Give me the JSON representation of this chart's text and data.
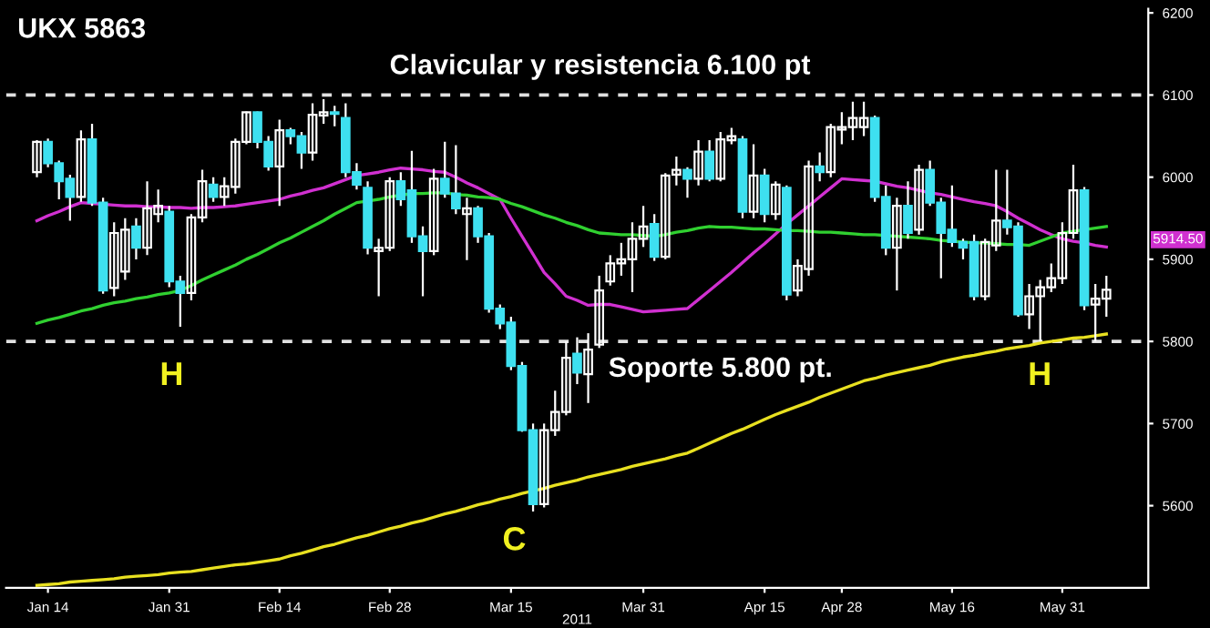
{
  "chart_data": {
    "type": "candlestick",
    "title": "UKX 5863",
    "xlabel": "2011",
    "categories": [
      null,
      "Jan 14",
      null,
      null,
      null,
      null,
      null,
      null,
      null,
      null,
      null,
      null,
      "Jan 31",
      null,
      null,
      null,
      null,
      null,
      null,
      null,
      null,
      null,
      "Feb 14",
      null,
      null,
      null,
      null,
      null,
      null,
      null,
      null,
      null,
      "Feb 28",
      null,
      null,
      null,
      null,
      null,
      null,
      null,
      null,
      null,
      null,
      "Mar 15",
      null,
      null,
      null,
      null,
      null,
      null,
      null,
      null,
      null,
      null,
      null,
      "Mar 31",
      null,
      null,
      null,
      null,
      null,
      null,
      null,
      null,
      null,
      null,
      "Apr 15",
      null,
      null,
      null,
      null,
      null,
      null,
      "Apr 28",
      null,
      null,
      null,
      null,
      null,
      null,
      null,
      null,
      null,
      "May 16",
      null,
      null,
      null,
      null,
      null,
      null,
      null,
      null,
      null,
      "May 31",
      null,
      null,
      null,
      null
    ],
    "ohlc": [
      [
        6006,
        6045,
        6000,
        6043
      ],
      [
        6043,
        6047,
        6012,
        6017
      ],
      [
        6017,
        6020,
        5973,
        5995
      ],
      [
        5998,
        6003,
        5947,
        5976
      ],
      [
        5976,
        6057,
        5970,
        6046
      ],
      [
        6046,
        6065,
        5965,
        5969
      ],
      [
        5969,
        5975,
        5858,
        5862
      ],
      [
        5865,
        5945,
        5855,
        5932
      ],
      [
        5885,
        5950,
        5875,
        5936
      ],
      [
        5940,
        5950,
        5900,
        5914
      ],
      [
        5914,
        5995,
        5905,
        5962
      ],
      [
        5955,
        5985,
        5945,
        5965
      ],
      [
        5958,
        5965,
        5866,
        5873
      ],
      [
        5873,
        5880,
        5818,
        5859
      ],
      [
        5859,
        5955,
        5850,
        5951
      ],
      [
        5951,
        6009,
        5945,
        5995
      ],
      [
        5991,
        6000,
        5970,
        5976
      ],
      [
        5976,
        6000,
        5965,
        5989
      ],
      [
        5988,
        6047,
        5980,
        6043
      ],
      [
        6043,
        6080,
        6040,
        6079
      ],
      [
        6079,
        6080,
        6035,
        6043
      ],
      [
        6043,
        6050,
        6008,
        6013
      ],
      [
        6013,
        6070,
        5965,
        6057
      ],
      [
        6057,
        6060,
        6040,
        6050
      ],
      [
        6050,
        6055,
        6010,
        6030
      ],
      [
        6030,
        6090,
        6020,
        6076
      ],
      [
        6075,
        6095,
        6065,
        6079
      ],
      [
        6079,
        6087,
        6062,
        6077
      ],
      [
        6072,
        6090,
        6000,
        6006
      ],
      [
        6006,
        6017,
        5985,
        5991
      ],
      [
        5987,
        5995,
        5906,
        5914
      ],
      [
        5910,
        5925,
        5855,
        5914
      ],
      [
        5914,
        6000,
        5910,
        5995
      ],
      [
        5995,
        6006,
        5965,
        5973
      ],
      [
        5984,
        6032,
        5920,
        5928
      ],
      [
        5928,
        5940,
        5855,
        5910
      ],
      [
        5910,
        6010,
        5905,
        5998
      ],
      [
        5998,
        6043,
        5975,
        5980
      ],
      [
        5980,
        6039,
        5955,
        5962
      ],
      [
        5955,
        5975,
        5899,
        5962
      ],
      [
        5962,
        5965,
        5920,
        5928
      ],
      [
        5928,
        5932,
        5835,
        5840
      ],
      [
        5840,
        5845,
        5815,
        5822
      ],
      [
        5823,
        5830,
        5765,
        5770
      ],
      [
        5770,
        5775,
        5690,
        5692
      ],
      [
        5692,
        5700,
        5593,
        5602
      ],
      [
        5602,
        5700,
        5598,
        5692
      ],
      [
        5692,
        5740,
        5685,
        5714
      ],
      [
        5714,
        5800,
        5710,
        5780
      ],
      [
        5785,
        5805,
        5748,
        5762
      ],
      [
        5760,
        5810,
        5725,
        5790
      ],
      [
        5796,
        5880,
        5792,
        5862
      ],
      [
        5873,
        5905,
        5868,
        5895
      ],
      [
        5895,
        5920,
        5880,
        5900
      ],
      [
        5900,
        5945,
        5860,
        5925
      ],
      [
        5925,
        5965,
        5915,
        5940
      ],
      [
        5943,
        5955,
        5898,
        5903
      ],
      [
        5903,
        6005,
        5900,
        6002
      ],
      [
        6003,
        6025,
        5990,
        6009
      ],
      [
        6009,
        6012,
        5975,
        5998
      ],
      [
        5998,
        6045,
        5990,
        6031
      ],
      [
        6031,
        6045,
        5995,
        5998
      ],
      [
        5998,
        6055,
        5995,
        6046
      ],
      [
        6045,
        6060,
        6040,
        6050
      ],
      [
        6046,
        6050,
        5950,
        5958
      ],
      [
        5958,
        6040,
        5950,
        6002
      ],
      [
        6002,
        6010,
        5945,
        5955
      ],
      [
        5955,
        5995,
        5948,
        5991
      ],
      [
        5987,
        5990,
        5850,
        5857
      ],
      [
        5862,
        5900,
        5855,
        5892
      ],
      [
        5888,
        6020,
        5880,
        6013
      ],
      [
        6013,
        6030,
        5995,
        6006
      ],
      [
        6006,
        6065,
        6000,
        6061
      ],
      [
        6058,
        6079,
        6040,
        6061
      ],
      [
        6061,
        6092,
        6045,
        6072
      ],
      [
        6061,
        6092,
        6050,
        6072
      ],
      [
        6072,
        6075,
        5970,
        5976
      ],
      [
        5976,
        5990,
        5905,
        5914
      ],
      [
        5914,
        5975,
        5862,
        5965
      ],
      [
        5965,
        5995,
        5925,
        5932
      ],
      [
        5936,
        6015,
        5930,
        6009
      ],
      [
        6009,
        6020,
        5965,
        5969
      ],
      [
        5969,
        5975,
        5877,
        5932
      ],
      [
        5936,
        5990,
        5915,
        5921
      ],
      [
        5921,
        5925,
        5900,
        5914
      ],
      [
        5921,
        5930,
        5850,
        5855
      ],
      [
        5855,
        5925,
        5850,
        5921
      ],
      [
        5917,
        6009,
        5910,
        5947
      ],
      [
        5947,
        6009,
        5930,
        5939
      ],
      [
        5940,
        5945,
        5830,
        5833
      ],
      [
        5833,
        5870,
        5815,
        5855
      ],
      [
        5855,
        5875,
        5800,
        5866
      ],
      [
        5866,
        5895,
        5860,
        5877
      ],
      [
        5877,
        5945,
        5870,
        5932
      ],
      [
        5932,
        6015,
        5925,
        5984
      ],
      [
        5984,
        5988,
        5838,
        5844
      ],
      [
        5845,
        5870,
        5800,
        5852
      ],
      [
        5852,
        5880,
        5830,
        5863
      ]
    ],
    "colors": [
      "#ffffff",
      "#3ee0f0",
      "#3ee0f0",
      "#3ee0f0",
      "#ffffff",
      "#3ee0f0",
      "#3ee0f0",
      "#ffffff",
      "#ffffff",
      "#3ee0f0",
      "#ffffff",
      "#ffffff",
      "#3ee0f0",
      "#3ee0f0",
      "#ffffff",
      "#ffffff",
      "#3ee0f0",
      "#ffffff",
      "#ffffff",
      "#ffffff",
      "#3ee0f0",
      "#3ee0f0",
      "#ffffff",
      "#3ee0f0",
      "#3ee0f0",
      "#ffffff",
      "#ffffff",
      "#3ee0f0",
      "#3ee0f0",
      "#3ee0f0",
      "#3ee0f0",
      "#ffffff",
      "#ffffff",
      "#3ee0f0",
      "#3ee0f0",
      "#3ee0f0",
      "#ffffff",
      "#3ee0f0",
      "#3ee0f0",
      "#ffffff",
      "#3ee0f0",
      "#3ee0f0",
      "#3ee0f0",
      "#3ee0f0",
      "#3ee0f0",
      "#3ee0f0",
      "#ffffff",
      "#ffffff",
      "#ffffff",
      "#3ee0f0",
      "#ffffff",
      "#ffffff",
      "#ffffff",
      "#ffffff",
      "#ffffff",
      "#ffffff",
      "#3ee0f0",
      "#ffffff",
      "#ffffff",
      "#3ee0f0",
      "#ffffff",
      "#3ee0f0",
      "#ffffff",
      "#ffffff",
      "#3ee0f0",
      "#ffffff",
      "#3ee0f0",
      "#ffffff",
      "#3ee0f0",
      "#ffffff",
      "#ffffff",
      "#3ee0f0",
      "#ffffff",
      "#ffffff",
      "#ffffff",
      "#ffffff",
      "#3ee0f0",
      "#3ee0f0",
      "#ffffff",
      "#3ee0f0",
      "#ffffff",
      "#3ee0f0",
      "#3ee0f0",
      "#3ee0f0",
      "#3ee0f0",
      "#3ee0f0",
      "#ffffff",
      "#ffffff",
      "#3ee0f0",
      "#3ee0f0",
      "#ffffff",
      "#ffffff",
      "#ffffff",
      "#ffffff",
      "#ffffff",
      "#3ee0f0",
      "#ffffff",
      "#ffffff"
    ],
    "series": [
      {
        "type": "line",
        "color": "#d030d0",
        "values": [
          5947,
          5953,
          5958,
          5964,
          5969,
          5968,
          5967,
          5966,
          5965,
          5965,
          5964,
          5964,
          5963,
          5963,
          5962,
          5963,
          5963,
          5964,
          5965,
          5967,
          5969,
          5971,
          5973,
          5977,
          5980,
          5984,
          5987,
          5992,
          5997,
          6002,
          6004,
          6006,
          6009,
          6011,
          6010,
          6009,
          6007,
          6006,
          6000,
          5993,
          5987,
          5980,
          5973,
          5950,
          5928,
          5906,
          5884,
          5870,
          5855,
          5850,
          5844,
          5845,
          5845,
          5842,
          5839,
          5836,
          5837,
          5838,
          5839,
          5840,
          5851,
          5862,
          5873,
          5884,
          5896,
          5908,
          5919,
          5931,
          5943,
          5954,
          5965,
          5976,
          5987,
          5998,
          5997,
          5996,
          5995,
          5992,
          5989,
          5987,
          5984,
          5981,
          5979,
          5976,
          5973,
          5970,
          5968,
          5965,
          5958,
          5950,
          5943,
          5936,
          5930,
          5925,
          5922,
          5920,
          5917,
          5915
        ]
      },
      {
        "type": "line",
        "color": "#30d030",
        "values": [
          5822,
          5826,
          5829,
          5833,
          5837,
          5840,
          5844,
          5847,
          5849,
          5852,
          5854,
          5857,
          5859,
          5862,
          5868,
          5875,
          5881,
          5887,
          5893,
          5900,
          5906,
          5913,
          5920,
          5926,
          5933,
          5940,
          5947,
          5955,
          5962,
          5969,
          5971,
          5973,
          5976,
          5978,
          5980,
          5980,
          5981,
          5981,
          5979,
          5978,
          5976,
          5975,
          5973,
          5968,
          5964,
          5959,
          5954,
          5950,
          5945,
          5941,
          5936,
          5932,
          5931,
          5930,
          5930,
          5929,
          5928,
          5930,
          5933,
          5935,
          5938,
          5940,
          5939,
          5939,
          5938,
          5937,
          5937,
          5936,
          5935,
          5935,
          5934,
          5933,
          5933,
          5932,
          5931,
          5930,
          5930,
          5929,
          5928,
          5927,
          5926,
          5925,
          5923,
          5922,
          5921,
          5920,
          5920,
          5919,
          5918,
          5918,
          5917,
          5922,
          5927,
          5932,
          5934,
          5936,
          5938,
          5940
        ]
      },
      {
        "type": "line",
        "color": "#e8e020",
        "values": [
          5503,
          5504,
          5505,
          5507,
          5508,
          5509,
          5510,
          5511,
          5513,
          5514,
          5515,
          5516,
          5518,
          5519,
          5520,
          5522,
          5524,
          5526,
          5528,
          5529,
          5531,
          5533,
          5535,
          5539,
          5542,
          5546,
          5550,
          5553,
          5557,
          5561,
          5564,
          5568,
          5572,
          5575,
          5579,
          5582,
          5586,
          5590,
          5593,
          5597,
          5601,
          5604,
          5608,
          5611,
          5615,
          5618,
          5621,
          5625,
          5628,
          5631,
          5635,
          5638,
          5641,
          5644,
          5648,
          5651,
          5654,
          5657,
          5661,
          5664,
          5670,
          5676,
          5682,
          5688,
          5693,
          5699,
          5705,
          5711,
          5716,
          5721,
          5726,
          5732,
          5737,
          5742,
          5747,
          5752,
          5755,
          5759,
          5762,
          5765,
          5768,
          5771,
          5775,
          5778,
          5781,
          5783,
          5786,
          5788,
          5791,
          5793,
          5795,
          5798,
          5800,
          5802,
          5804,
          5805,
          5807,
          5809
        ]
      }
    ],
    "ylim": [
      5500,
      6205
    ],
    "yticks": [
      5600,
      5700,
      5800,
      5900,
      6000,
      6100,
      6200
    ],
    "ref_lines": [
      {
        "axis": "y",
        "value": 6100,
        "label": "Clavicular y resistencia 6.100 pt",
        "color": "#e0e0e0",
        "line_style": "dashed"
      },
      {
        "axis": "y",
        "value": 5800,
        "label": "Soporte 5.800 pt.",
        "color": "#e0e0e0",
        "line_style": "dashed"
      }
    ],
    "annotations": [
      "H",
      "C",
      "H",
      "5914.50"
    ],
    "grid": false,
    "legend": false
  }
}
